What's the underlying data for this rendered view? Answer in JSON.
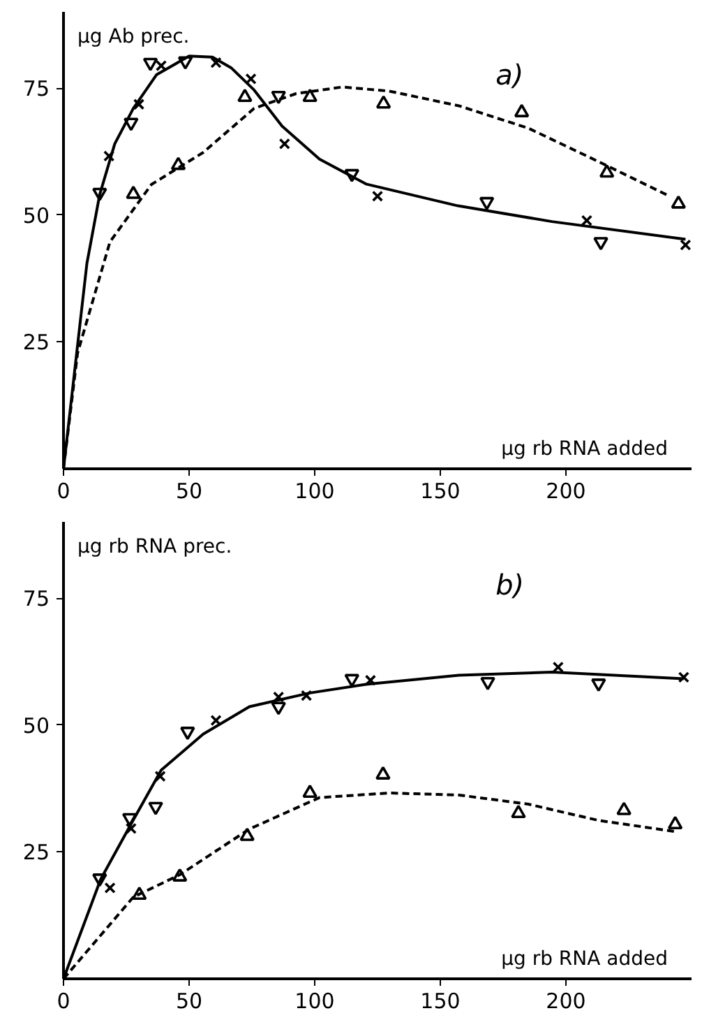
{
  "chart_data": [
    {
      "type": "scatter",
      "xlabel": "μg rb RNA added",
      "ylabel": "μg Ab prec.",
      "annotations": [
        "a)"
      ],
      "xlim": [
        0,
        250
      ],
      "ylim": [
        0,
        90
      ],
      "xticks": [
        0,
        50,
        100,
        150,
        200
      ],
      "yticks": [
        25,
        50,
        75
      ],
      "grid": false,
      "series": [
        {
          "type": "line",
          "color": "#000000",
          "line_style": "solid",
          "x": [
            0,
            9.3,
            14.4,
            20.4,
            27.8,
            37,
            50,
            59.3,
            66.7,
            75.9,
            87,
            101.9,
            120.4,
            157,
            194.4,
            247.6
          ],
          "values": [
            0,
            40.4,
            54,
            64,
            71,
            77.6,
            81.3,
            81.1,
            79,
            74.6,
            67.5,
            61,
            56.1,
            51.8,
            48.7,
            45.2
          ]
        },
        {
          "type": "line",
          "color": "#000000",
          "line_style": "dashed",
          "x": [
            0,
            5.6,
            18.5,
            35,
            55.6,
            75.9,
            92.6,
            111,
            129.6,
            157.4,
            185,
            213,
            240
          ],
          "values": [
            0,
            22.8,
            44.7,
            56,
            62.3,
            71,
            73.9,
            75.2,
            74.4,
            71.5,
            67.1,
            60.5,
            54
          ]
        },
        {
          "color": "#000000",
          "marker": "triangle_down",
          "x": [
            14.4,
            26.9,
            34.6,
            48.5,
            85.6,
            114.8,
            168.5,
            213.9
          ],
          "values": [
            54.4,
            68.2,
            80,
            80.3,
            73.5,
            58.1,
            52.6,
            44.7
          ]
        },
        {
          "color": "#000000",
          "marker": "cross",
          "x": [
            18.1,
            30,
            38.9,
            60.7,
            74.6,
            88,
            125,
            208.3,
            247.6
          ],
          "values": [
            61.6,
            71.8,
            79.4,
            80,
            76.8,
            64,
            53.7,
            48.9,
            44.1
          ]
        },
        {
          "color": "#000000",
          "marker": "triangle",
          "x": [
            27.8,
            45.7,
            72.2,
            98.1,
            127.4,
            182.4,
            216.3,
            244.8
          ],
          "values": [
            54.1,
            59.8,
            73.2,
            73.2,
            71.9,
            70.2,
            58.3,
            52.2
          ]
        }
      ]
    },
    {
      "type": "scatter",
      "xlabel": "μg rb RNA added",
      "ylabel": "μg rb RNA prec.",
      "annotations": [
        "b)"
      ],
      "xlim": [
        0,
        250
      ],
      "ylim": [
        0,
        90
      ],
      "xticks": [
        0,
        50,
        100,
        150,
        200
      ],
      "yticks": [
        25,
        50,
        75
      ],
      "grid": false,
      "series": [
        {
          "type": "line",
          "color": "#000000",
          "line_style": "solid",
          "x": [
            0,
            14.8,
            27.8,
            38.9,
            55.6,
            74,
            98,
            120.4,
            157.4,
            194.4,
            246.9
          ],
          "values": [
            0,
            19.6,
            31.3,
            41.1,
            48.2,
            53.6,
            56.3,
            58,
            59.8,
            60.4,
            59.1
          ]
        },
        {
          "type": "line",
          "color": "#000000",
          "line_style": "dashed",
          "x": [
            0,
            27.8,
            46.3,
            74,
            101.9,
            129.6,
            157.4,
            185,
            213,
            243.5
          ],
          "values": [
            0,
            16.1,
            20.5,
            29.5,
            35.7,
            36.6,
            36.2,
            34.4,
            31.2,
            29
          ]
        },
        {
          "color": "#000000",
          "marker": "triangle_down",
          "x": [
            14.4,
            26.3,
            36.7,
            49.4,
            85.6,
            114.8,
            168.9,
            213
          ],
          "values": [
            19.8,
            31.7,
            33.9,
            48.7,
            53.6,
            59.1,
            58.5,
            58.2
          ]
        },
        {
          "color": "#000000",
          "marker": "cross",
          "x": [
            18.5,
            26.9,
            38.5,
            60.7,
            85.6,
            96.7,
            122.2,
            196.9,
            246.9
          ],
          "values": [
            17.9,
            29.6,
            39.9,
            50.9,
            55.5,
            55.8,
            58.8,
            61.4,
            59.4
          ]
        },
        {
          "color": "#000000",
          "marker": "triangle",
          "x": [
            30.2,
            46.3,
            73.1,
            98.1,
            127.2,
            181.1,
            223.1,
            243.5
          ],
          "values": [
            16.5,
            20.1,
            28.1,
            36.6,
            40.2,
            32.6,
            33.2,
            30.4
          ]
        }
      ]
    }
  ]
}
